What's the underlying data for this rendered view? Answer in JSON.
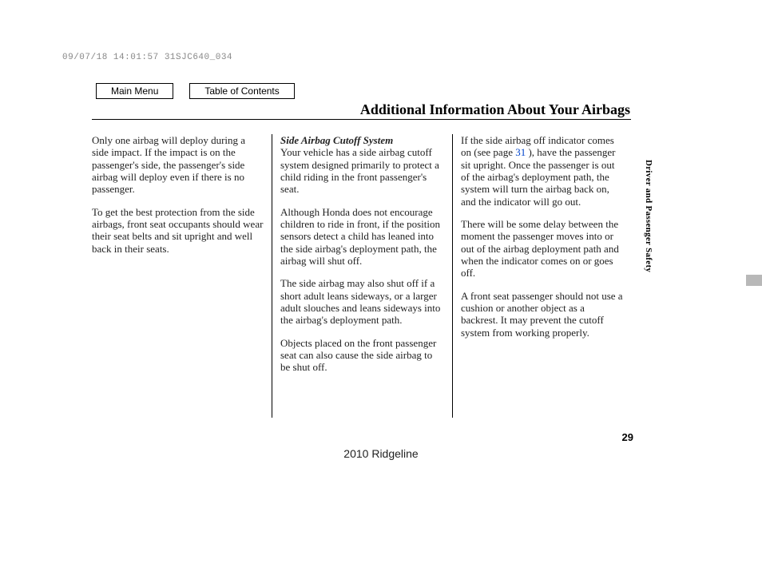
{
  "timestamp": "09/07/18 14:01:57 31SJC640_034",
  "nav": {
    "main_menu": "Main Menu",
    "toc": "Table of Contents"
  },
  "title": "Additional Information About Your Airbags",
  "col1": {
    "p1": "Only one airbag will deploy during a side impact. If the impact is on the passenger's side, the passenger's side airbag will deploy even if there is no passenger.",
    "p2": "To get the best protection from the side airbags, front seat occupants should wear their seat belts and sit upright and well back in their seats."
  },
  "col2": {
    "subhead": "Side Airbag Cutoff System",
    "p1": "Your vehicle has a side airbag cutoff system designed primarily to protect a child riding in the front passenger's seat.",
    "p2": "Although Honda does not encourage children to ride in front, if the position sensors detect a child has leaned into the side airbag's deployment path, the airbag will shut off.",
    "p3": "The side airbag may also shut off if a short adult leans sideways, or a larger adult slouches and leans sideways into the airbag's deployment path.",
    "p4": "Objects placed on the front passenger seat can also cause the side airbag to be shut off."
  },
  "col3": {
    "p1a": "If the side airbag off indicator comes on (see page ",
    "p1_ref": "31",
    "p1b": " ), have the passenger sit upright. Once the passenger is out of the airbag's deployment path, the system will turn the airbag back on, and the indicator will go out.",
    "p2": "There will be some delay between the moment the passenger moves into or out of the airbag deployment path and when the indicator comes on or goes off.",
    "p3": "A front seat passenger should not use a cushion or another object as a backrest. It may prevent the cutoff system from working properly."
  },
  "sidebar": "Driver and Passenger Safety",
  "page_number": "29",
  "footer": "2010 Ridgeline"
}
